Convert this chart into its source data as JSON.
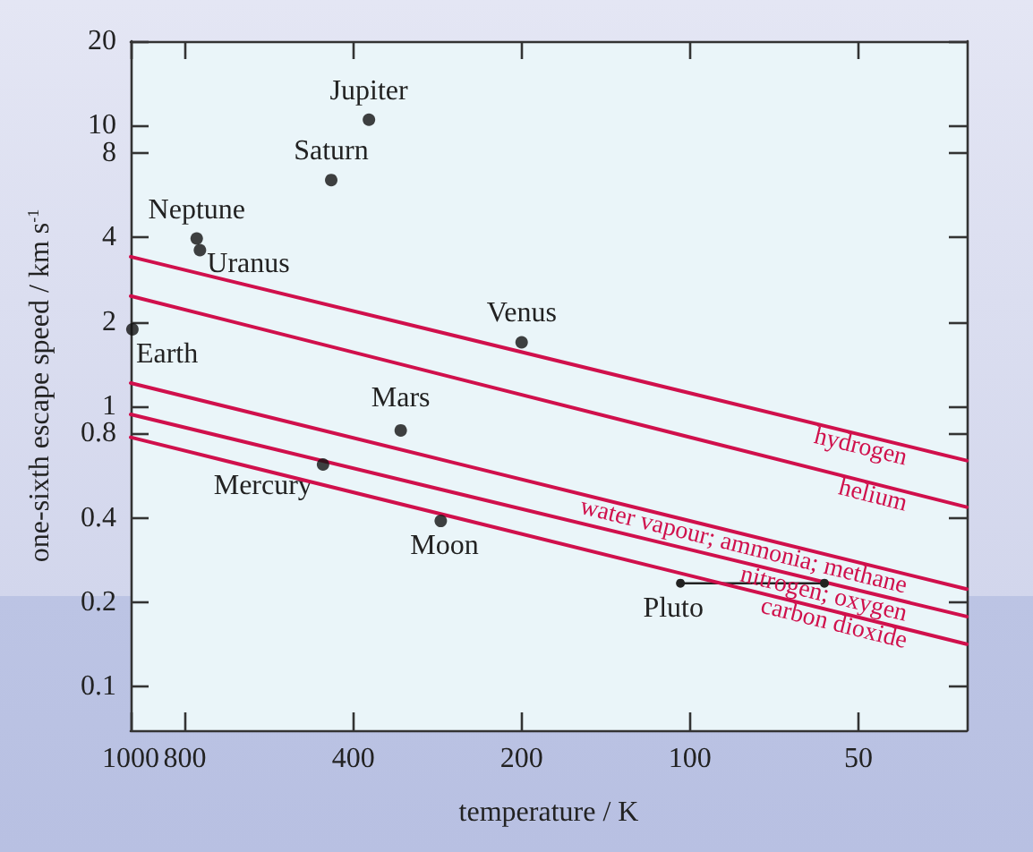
{
  "chart_data": {
    "type": "scatter",
    "xlabel": "temperature / K",
    "ylabel": "one-sixth escape speed / km s$^{-1}$",
    "log": "xy",
    "xlim": [
      1000,
      32
    ],
    "xticks": [
      1000,
      800,
      400,
      200,
      100,
      50
    ],
    "ylim": [
      0.07,
      20
    ],
    "yticks": [
      0.1,
      0.2,
      0.4,
      0.8,
      1,
      2,
      4,
      8,
      10,
      20
    ],
    "grid": false,
    "series": [
      {
        "marker": "circle",
        "color": "#111111",
        "x": [
          375,
          438,
          762,
          752,
          993,
          200,
          329,
          453,
          279
        ],
        "values": [
          10.5,
          6.4,
          3.96,
          3.6,
          1.88,
          1.69,
          0.82,
          0.62,
          0.39
        ]
      },
      {
        "type": "line",
        "marker": "circle",
        "color": "#222222",
        "x": [
          104,
          57.5
        ],
        "values": [
          0.234,
          0.234
        ]
      },
      {
        "type": "line",
        "name": "hydrogen",
        "marker": "none",
        "color": "#d0104c",
        "x": [
          1000,
          32
        ],
        "values": [
          3.41,
          0.64
        ]
      },
      {
        "type": "line",
        "name": "helium",
        "marker": "none",
        "color": "#d0104c",
        "x": [
          1000,
          32
        ],
        "values": [
          2.47,
          0.437
        ]
      },
      {
        "type": "line",
        "name": "water vapour; ammonia; methane",
        "marker": "none",
        "color": "#d0104c",
        "x": [
          1000,
          32
        ],
        "values": [
          1.21,
          0.223
        ]
      },
      {
        "type": "line",
        "name": "nitrogen; oxygen",
        "marker": "none",
        "color": "#d0104c",
        "x": [
          1000,
          32
        ],
        "values": [
          0.935,
          0.178
        ]
      },
      {
        "type": "line",
        "name": "carbon dioxide",
        "marker": "none",
        "color": "#d0104c",
        "x": [
          1000,
          32
        ],
        "values": [
          0.775,
          0.142
        ]
      }
    ],
    "annotations": [
      {
        "text": "Jupiter",
        "x": 375,
        "y": 10.5
      },
      {
        "text": "Saturn",
        "x": 438,
        "y": 6.4
      },
      {
        "text": "Neptune",
        "x": 762,
        "y": 3.96
      },
      {
        "text": "Uranus",
        "x": 752,
        "y": 3.6
      },
      {
        "text": "Earth",
        "x": 993,
        "y": 1.88
      },
      {
        "text": "Venus",
        "x": 200,
        "y": 1.69
      },
      {
        "text": "Mars",
        "x": 329,
        "y": 0.82
      },
      {
        "text": "Mercury",
        "x": 453,
        "y": 0.62
      },
      {
        "text": "Moon",
        "x": 279,
        "y": 0.39
      },
      {
        "text": "Pluto",
        "x": 104,
        "y": 0.234
      }
    ]
  }
}
